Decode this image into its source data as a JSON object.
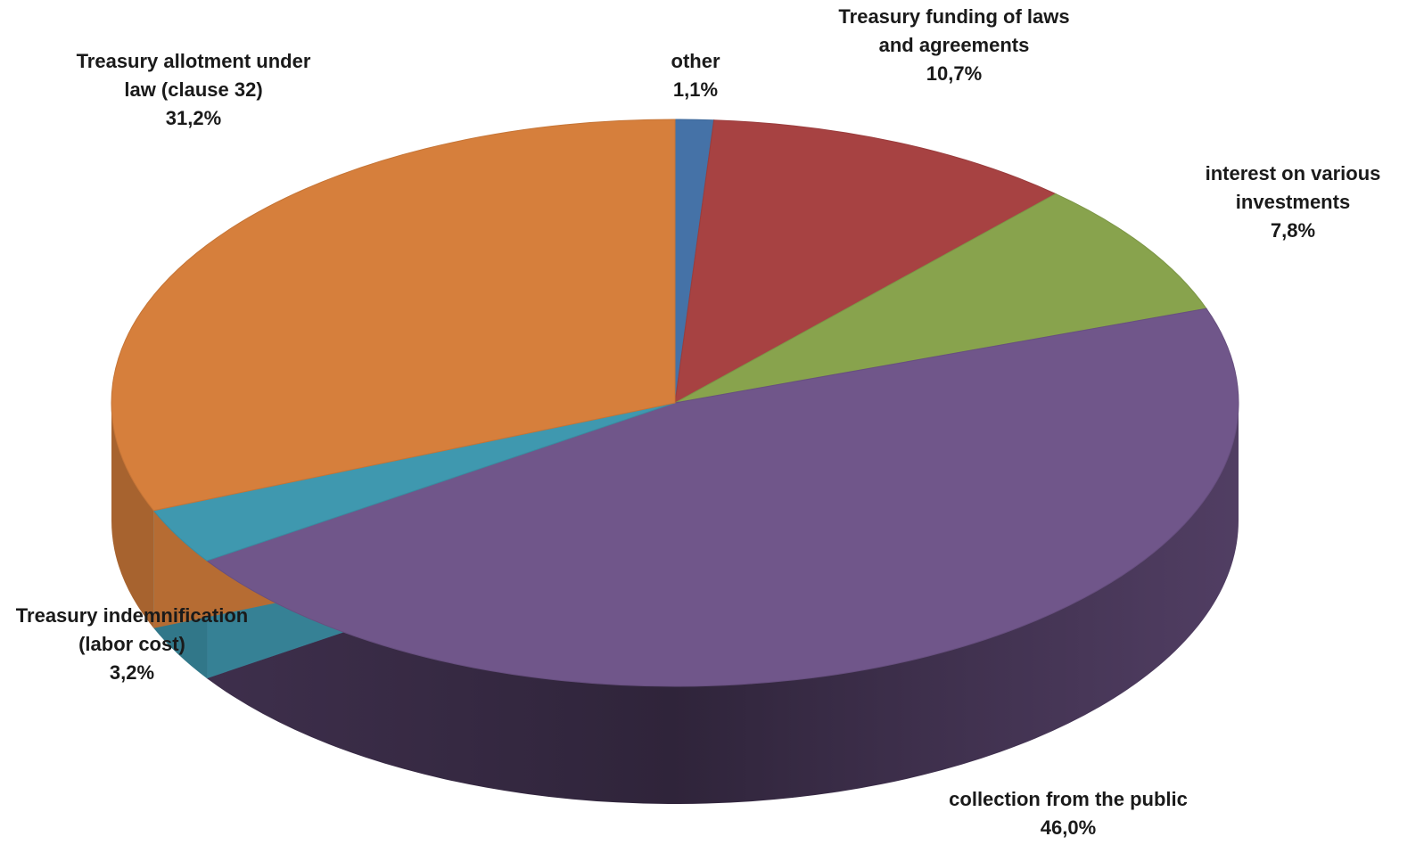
{
  "chart_data": {
    "type": "pie",
    "style": "3d",
    "slices": [
      {
        "name": "other",
        "label_lines": [
          "other"
        ],
        "value_label": "1,1%",
        "value": 1.1,
        "color": "#4572A7"
      },
      {
        "name": "Treasury funding of laws and agreements",
        "label_lines": [
          "Treasury funding of laws",
          "and agreements"
        ],
        "value_label": "10,7%",
        "value": 10.7,
        "color": "#A74242"
      },
      {
        "name": "interest on various investments",
        "label_lines": [
          "interest on various",
          "investments"
        ],
        "value_label": "7,8%",
        "value": 7.8,
        "color": "#88A34D"
      },
      {
        "name": "collection from the public",
        "label_lines": [
          "collection from the public"
        ],
        "value_label": "46,0%",
        "value": 46.0,
        "color": "#70568A"
      },
      {
        "name": "Treasury indemnification (labor cost)",
        "label_lines": [
          "Treasury indemnification",
          "(labor cost)"
        ],
        "value_label": "3,2%",
        "value": 3.2,
        "color": "#3F98AF"
      },
      {
        "name": "Treasury allotment under law (clause 32)",
        "label_lines": [
          "Treasury allotment under",
          "law (clause 32)"
        ],
        "value_label": "31,2%",
        "value": 31.2,
        "color": "#D67F3C"
      }
    ]
  }
}
